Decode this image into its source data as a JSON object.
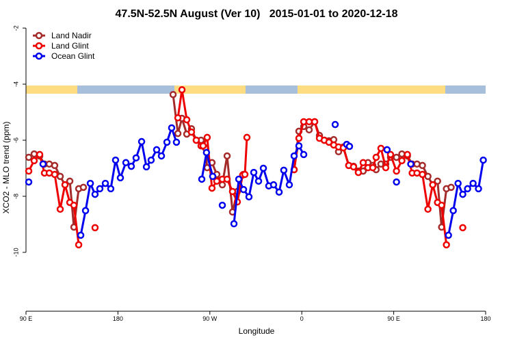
{
  "chart_data": {
    "type": "line",
    "title": "47.5N-52.5N August (Ver 10)   2015-01-01 to 2020-12-18",
    "xlabel": "Longitude",
    "ylabel": "XCO2 - MLO trend (ppm)",
    "xlim": [
      90,
      540
    ],
    "ylim": [
      -12.1,
      -1.73
    ],
    "xticks": [
      {
        "value": 90,
        "label": "90 E"
      },
      {
        "value": 180,
        "label": "180"
      },
      {
        "value": 270,
        "label": "90 W"
      },
      {
        "value": 360,
        "label": "0"
      },
      {
        "value": 450,
        "label": "90 E"
      },
      {
        "value": 540,
        "label": "180"
      }
    ],
    "yticks": [
      -10,
      -8,
      -6,
      -4,
      -2
    ],
    "legend": "top-left",
    "series": [
      {
        "name": "Land Nadir",
        "color": "#a52a2a",
        "x": [
          92.7,
          98.0,
          103.4,
          108.1,
          112.8,
          118.1,
          123.5,
          128.2,
          132.9,
          136.9,
          141.6,
          146.2,
          null,
          234.0,
          238.7,
          242.7,
          247.4,
          252.0,
          256.7,
          261.4,
          265.4,
          267.4,
          272.1,
          276.8,
          282.2,
          286.9,
          292.2,
          296.9,
          302.9,
          null,
          352.5,
          357.2,
          361.9,
          367.2,
          372.6,
          377.3,
          382.0,
          386.6,
          391.3,
          396.0,
          400.7,
          406.0,
          410.7,
          415.4,
          420.1,
          424.8,
          429.5,
          432.8,
          437.5,
          442.2,
          446.9,
          452.7,
          458.0,
          463.4,
          468.1,
          472.8,
          478.1,
          483.5,
          488.2,
          492.9,
          496.9,
          501.6,
          506.2
        ],
        "values": [
          -6.61,
          -6.49,
          -6.56,
          -6.85,
          -6.85,
          -6.9,
          -7.29,
          -7.59,
          -7.46,
          -9.1,
          -7.73,
          -7.68,
          null,
          -4.37,
          -5.76,
          -5.22,
          -5.78,
          -5.59,
          -6.0,
          -6.0,
          -6.27,
          -6.98,
          -6.8,
          -7.22,
          -7.59,
          -6.56,
          -8.56,
          -7.83,
          -7.22,
          null,
          -7.05,
          -5.68,
          -5.51,
          -5.63,
          -5.34,
          -5.83,
          -6.0,
          -6.02,
          -5.98,
          -6.41,
          -6.24,
          -6.9,
          -6.93,
          -7.1,
          -7.1,
          -6.8,
          -6.9,
          -7.05,
          -6.85,
          -6.85,
          -6.61,
          -6.61,
          -6.49,
          -6.56,
          -6.85,
          -6.85,
          -6.9,
          -7.29,
          -7.59,
          -7.46,
          -9.1,
          -7.73,
          -7.68
        ]
      },
      {
        "name": "Land Glint",
        "color": "#ee0000",
        "x": [
          92.7,
          98.0,
          103.4,
          108.1,
          112.8,
          118.1,
          123.5,
          128.2,
          132.9,
          136.9,
          141.6,
          null,
          157.6,
          null,
          238.7,
          242.7,
          247.4,
          252.0,
          256.7,
          261.4,
          263.4,
          267.4,
          272.1,
          276.8,
          282.2,
          286.9,
          292.2,
          296.9,
          302.2,
          304.3,
          306.3,
          null,
          352.5,
          357.2,
          361.9,
          367.2,
          372.6,
          377.3,
          382.0,
          386.6,
          391.3,
          396.0,
          400.7,
          406.0,
          410.7,
          415.4,
          420.1,
          424.8,
          429.5,
          432.8,
          437.5,
          442.2,
          446.9,
          452.7,
          458.0,
          463.4,
          468.1,
          472.8,
          478.1,
          483.5,
          488.2,
          492.9,
          496.9,
          501.6,
          null,
          517.6
        ],
        "values": [
          -7.1,
          -6.73,
          -6.51,
          -7.17,
          -7.17,
          -7.22,
          -8.46,
          -7.59,
          -8.22,
          -8.32,
          -9.73,
          null,
          -9.12,
          null,
          -5.2,
          -4.2,
          -5.27,
          -5.71,
          -6.0,
          -6.2,
          -6.2,
          -5.9,
          -7.71,
          -7.46,
          -7.39,
          -7.39,
          -7.83,
          -8.2,
          -7.24,
          -7.22,
          -5.9,
          null,
          -7.05,
          -5.93,
          -5.34,
          -5.34,
          -5.34,
          -5.93,
          -6.0,
          -6.07,
          -6.17,
          -6.24,
          -6.27,
          -6.9,
          -6.95,
          -7.15,
          -6.8,
          -6.98,
          -6.98,
          -6.61,
          -6.29,
          -6.98,
          -6.51,
          -7.1,
          -6.73,
          -6.51,
          -7.17,
          -7.17,
          -7.22,
          -8.46,
          -7.59,
          -8.22,
          -8.32,
          -9.73,
          null,
          -9.12
        ]
      },
      {
        "name": "Ocean Glint",
        "color": "#0000ee",
        "x": [
          92.7,
          null,
          106.7,
          null,
          143.6,
          148.3,
          153.0,
          157.6,
          162.3,
          167.7,
          173.0,
          177.7,
          182.4,
          187.8,
          193.1,
          197.8,
          203.2,
          207.9,
          212.5,
          217.9,
          222.6,
          228.0,
          232.6,
          237.3,
          null,
          262.1,
          266.7,
          272.8,
          null,
          282.2,
          null,
          293.6,
          298.3,
          303.0,
          308.3,
          313.0,
          317.7,
          322.4,
          327.7,
          332.4,
          337.8,
          342.4,
          347.8,
          352.5,
          357.2,
          361.9,
          null,
          392.7,
          null,
          404.0,
          406.7,
          null,
          443.5,
          null,
          452.7,
          null,
          466.7,
          null,
          503.6,
          508.3,
          513.0,
          517.6,
          522.3,
          527.7,
          533.0,
          537.7
        ],
        "values": [
          -7.49,
          null,
          -6.85,
          null,
          -9.39,
          -8.51,
          -7.54,
          -7.93,
          -7.73,
          -7.54,
          -7.73,
          -6.71,
          -7.34,
          -6.8,
          -6.93,
          -6.63,
          -6.05,
          -6.95,
          -6.71,
          -6.34,
          -6.56,
          -6.07,
          -5.56,
          -6.07,
          null,
          -7.39,
          -6.44,
          -7.29,
          null,
          -8.32,
          null,
          -8.98,
          -7.39,
          -7.76,
          -8.02,
          -7.15,
          -7.46,
          -7.0,
          -7.63,
          -7.59,
          -7.85,
          -7.07,
          -7.59,
          -6.56,
          -6.2,
          -6.51,
          null,
          -5.44,
          null,
          -6.15,
          -6.22,
          null,
          -6.34,
          null,
          -7.49,
          null,
          -6.85,
          null,
          -9.39,
          -8.51,
          -7.54,
          -7.93,
          -7.73,
          -7.54,
          -7.73,
          -6.71
        ]
      }
    ]
  }
}
